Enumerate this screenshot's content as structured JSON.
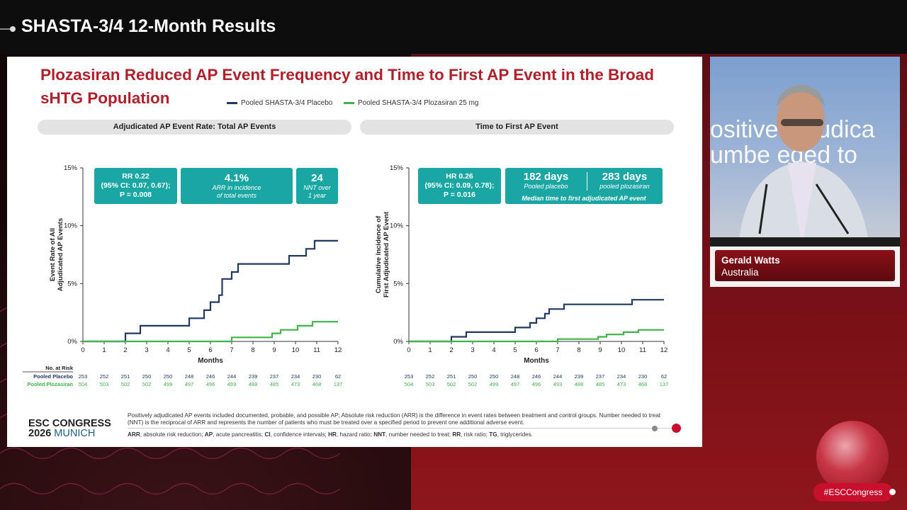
{
  "broadcast": {
    "title": "SHASTA-3/4 12-Month Results",
    "hashtag": "#ESCCongress"
  },
  "slide": {
    "title": "Plozasiran Reduced AP Event Frequency and Time to First AP Event in the Broad sHTG Population",
    "legend": [
      {
        "label": "Pooled SHASTA-3/4 Placebo",
        "color": "#1f3864"
      },
      {
        "label": "Pooled SHASTA-3/4 Plozasiran 25 mg",
        "color": "#3cb54a"
      }
    ],
    "left_panel": {
      "header": "Adjudicated AP Event Rate: Total AP Events",
      "stats": [
        {
          "line1": "RR 0.22",
          "line2": "(95% CI: 0.07, 0.67);",
          "line3": "P = 0.008"
        },
        {
          "big": "4.1%",
          "small1": "ARR in incidence",
          "small2": "of total events"
        },
        {
          "big": "24",
          "small1": "NNT over",
          "small2": "1 year"
        }
      ]
    },
    "right_panel": {
      "header": "Time to First AP Event",
      "stats": [
        {
          "line1": "HR 0.26",
          "line2": "(95% CI: 0.09, 0.78);",
          "line3": "P = 0.016"
        },
        {
          "big1": "182 days",
          "small1": "Pooled placebo",
          "big2": "283 days",
          "small2": "pooled plozasiran",
          "caption": "Median time to first adjudicated AP event"
        }
      ]
    },
    "risk_table": {
      "header": "No. at Risk",
      "row_labels": [
        "Pooled Placebo",
        "Pooled Plozasiran"
      ],
      "placebo": [
        "253",
        "252",
        "251",
        "250",
        "250",
        "248",
        "246",
        "244",
        "239",
        "237",
        "234",
        "230",
        "62"
      ],
      "plozasiran": [
        "504",
        "503",
        "502",
        "502",
        "499",
        "497",
        "496",
        "493",
        "488",
        "485",
        "473",
        "468",
        "137"
      ]
    },
    "footnote": "Positively adjudicated AP events included documented, probable, and possible AP; Absolute risk reduction (ARR) is the difference in event rates between treatment and control groups. Number needed to treat (NNT) is the reciprocal of ARR and represents the number of patients who must be treated over a specified period to prevent one additional adverse event.",
    "abbreviations": [
      {
        "k": "ARR",
        "v": ", absolute risk reduction;  "
      },
      {
        "k": "AP",
        "v": ", acute pancreatitis; "
      },
      {
        "k": "CI",
        "v": ", confidence intervals; "
      },
      {
        "k": "HR",
        "v": ", hazard ratio; "
      },
      {
        "k": "NNT",
        "v": ", number needed to treat; "
      },
      {
        "k": "RR",
        "v": ", risk ratio; "
      },
      {
        "k": "TG",
        "v": ", triglycerides."
      }
    ],
    "logo": {
      "line1": "ESC CONGRESS",
      "year": "2026",
      "city": "MUNICH"
    }
  },
  "speaker": {
    "name": "Gerald Watts",
    "country": "Australia",
    "background_text": "ositive adjudica\numbe eded to"
  },
  "chart_data": [
    {
      "type": "line",
      "title": "Adjudicated AP Event Rate: Total AP Events",
      "xlabel": "Months",
      "ylabel": "Event Rate of All Adjudicated AP Events",
      "xlim": [
        0,
        12
      ],
      "ylim": [
        0,
        15
      ],
      "xticks": [
        "0",
        "1",
        "2",
        "3",
        "4",
        "5",
        "6",
        "7",
        "8",
        "9",
        "10",
        "11",
        "12"
      ],
      "yticks": [
        "0%",
        "5%",
        "10%",
        "15%"
      ],
      "series": [
        {
          "name": "Pooled SHASTA-3/4 Placebo",
          "color": "#1f3864",
          "points": [
            [
              0,
              0
            ],
            [
              2,
              0
            ],
            [
              2,
              0.7
            ],
            [
              2.7,
              0.7
            ],
            [
              2.7,
              1.35
            ],
            [
              5,
              1.35
            ],
            [
              5,
              2.0
            ],
            [
              5.7,
              2.0
            ],
            [
              5.7,
              2.7
            ],
            [
              6,
              2.7
            ],
            [
              6,
              3.4
            ],
            [
              6.4,
              3.4
            ],
            [
              6.4,
              4.0
            ],
            [
              6.55,
              4.0
            ],
            [
              6.55,
              5.4
            ],
            [
              7,
              5.4
            ],
            [
              7,
              6.0
            ],
            [
              7.3,
              6.0
            ],
            [
              7.3,
              6.7
            ],
            [
              9.7,
              6.7
            ],
            [
              9.7,
              7.4
            ],
            [
              10.5,
              7.4
            ],
            [
              10.5,
              8.0
            ],
            [
              10.9,
              8.0
            ],
            [
              10.9,
              8.7
            ],
            [
              12,
              8.7
            ]
          ]
        },
        {
          "name": "Pooled SHASTA-3/4 Plozasiran 25 mg",
          "color": "#3cb54a",
          "points": [
            [
              0,
              0
            ],
            [
              7,
              0
            ],
            [
              7,
              0.35
            ],
            [
              8.9,
              0.35
            ],
            [
              8.9,
              0.7
            ],
            [
              9.3,
              0.7
            ],
            [
              9.3,
              1.0
            ],
            [
              10.1,
              1.0
            ],
            [
              10.1,
              1.35
            ],
            [
              10.8,
              1.35
            ],
            [
              10.8,
              1.7
            ],
            [
              12,
              1.7
            ]
          ]
        }
      ]
    },
    {
      "type": "line",
      "title": "Time to First AP Event",
      "xlabel": "Months",
      "ylabel": "Cumulative Incidence of First Adjudicated AP Event",
      "xlim": [
        0,
        12
      ],
      "ylim": [
        0,
        15
      ],
      "xticks": [
        "0",
        "1",
        "2",
        "3",
        "4",
        "5",
        "6",
        "7",
        "8",
        "9",
        "10",
        "11",
        "12"
      ],
      "yticks": [
        "0%",
        "5%",
        "10%",
        "15%"
      ],
      "series": [
        {
          "name": "Pooled SHASTA-3/4 Placebo",
          "color": "#1f3864",
          "points": [
            [
              0,
              0
            ],
            [
              2,
              0
            ],
            [
              2,
              0.4
            ],
            [
              2.7,
              0.4
            ],
            [
              2.7,
              0.8
            ],
            [
              5,
              0.8
            ],
            [
              5,
              1.2
            ],
            [
              5.7,
              1.2
            ],
            [
              5.7,
              1.6
            ],
            [
              6,
              1.6
            ],
            [
              6,
              2.0
            ],
            [
              6.4,
              2.0
            ],
            [
              6.4,
              2.4
            ],
            [
              6.6,
              2.4
            ],
            [
              6.6,
              2.8
            ],
            [
              7.3,
              2.8
            ],
            [
              7.3,
              3.2
            ],
            [
              10.5,
              3.2
            ],
            [
              10.5,
              3.6
            ],
            [
              12,
              3.6
            ]
          ]
        },
        {
          "name": "Pooled SHASTA-3/4 Plozasiran 25 mg",
          "color": "#3cb54a",
          "points": [
            [
              0,
              0
            ],
            [
              7,
              0
            ],
            [
              7,
              0.2
            ],
            [
              8.9,
              0.2
            ],
            [
              8.9,
              0.4
            ],
            [
              9.3,
              0.4
            ],
            [
              9.3,
              0.6
            ],
            [
              10.1,
              0.6
            ],
            [
              10.1,
              0.8
            ],
            [
              10.8,
              0.8
            ],
            [
              10.8,
              1.0
            ],
            [
              12,
              1.0
            ]
          ]
        }
      ]
    }
  ]
}
